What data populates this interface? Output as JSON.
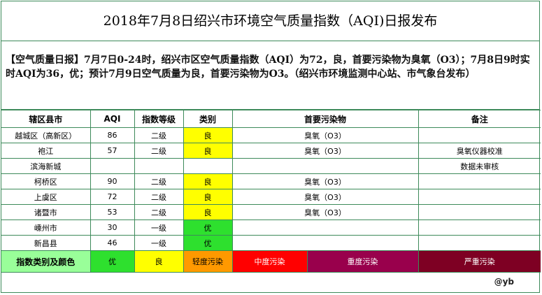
{
  "title": "2018年7月8日绍兴市环境空气质量指数（AQI)日报发布",
  "report_text": "【空气质量日报】7月7日0-24时，绍兴市区空气质量指数（AQI）为72，良，首要污染物为臭氧（O3）；7月8日9时实时AQI为36，优；预计7月9日空气质量为良，首要污染物为O3。（绍兴市环境监测中心站、市气象台发布）",
  "table": {
    "headers": [
      "辖区县市",
      "AQI",
      "指数等级",
      "类别",
      "首要污染物",
      "备注"
    ],
    "rows": [
      {
        "district": "越城区（高新区）",
        "aqi": "86",
        "level": "二级",
        "category": "良",
        "cat_color": "#ffff00",
        "pollutant": "臭氧（O3）",
        "note": ""
      },
      {
        "district": "袍江",
        "aqi": "57",
        "level": "二级",
        "category": "良",
        "cat_color": "#ffff00",
        "pollutant": "臭氧（O3）",
        "note": "臭氧仪器校准"
      },
      {
        "district": "滨海新城",
        "aqi": "",
        "level": "",
        "category": "",
        "cat_color": "#ffffff",
        "pollutant": "",
        "note": "数据未审核"
      },
      {
        "district": "柯桥区",
        "aqi": "90",
        "level": "二级",
        "category": "良",
        "cat_color": "#ffff00",
        "pollutant": "臭氧（O3）",
        "note": ""
      },
      {
        "district": "上虞区",
        "aqi": "72",
        "level": "二级",
        "category": "良",
        "cat_color": "#ffff00",
        "pollutant": "臭氧（O3）",
        "note": ""
      },
      {
        "district": "诸暨市",
        "aqi": "53",
        "level": "二级",
        "category": "良",
        "cat_color": "#ffff00",
        "pollutant": "臭氧（O3）",
        "note": ""
      },
      {
        "district": "嵊州市",
        "aqi": "30",
        "level": "一级",
        "category": "优",
        "cat_color": "#2ee02e",
        "pollutant": "",
        "note": ""
      },
      {
        "district": "新昌县",
        "aqi": "46",
        "level": "一级",
        "category": "优",
        "cat_color": "#2ee02e",
        "pollutant": "",
        "note": ""
      }
    ]
  },
  "legend": {
    "label": "指数类别及颜色",
    "items": [
      {
        "text": "优",
        "color": "#2ee02e",
        "text_color": "#000000"
      },
      {
        "text": "良",
        "color": "#ffff00",
        "text_color": "#000000"
      },
      {
        "text": "轻度污染",
        "color": "#ff9900",
        "text_color": "#000000"
      },
      {
        "text": "中度污染",
        "color": "#ff0000",
        "text_color": "#ffffff"
      },
      {
        "text": "重度污染",
        "color": "#99004c",
        "text_color": "#ffffff"
      },
      {
        "text": "严重污染",
        "color": "#7e0023",
        "text_color": "#ffffff"
      }
    ]
  },
  "signature": "@yb"
}
